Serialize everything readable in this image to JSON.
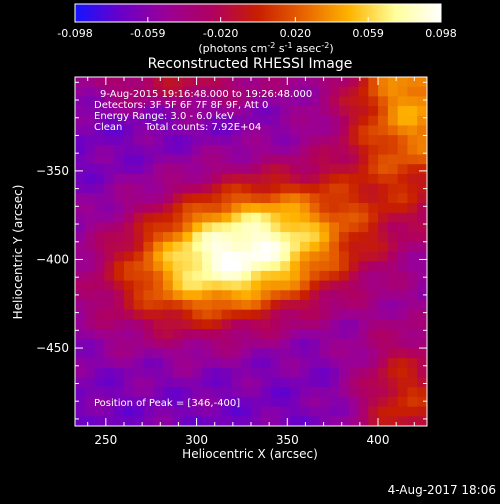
{
  "chart_data": {
    "type": "heatmap",
    "title": "Reconstructed RHESSI Image",
    "xlabel": "Heliocentric X (arcsec)",
    "ylabel": "Heliocentric Y (arcsec)",
    "xlim": [
      233,
      427
    ],
    "ylim": [
      -494,
      -297
    ],
    "x_ticks": [
      250,
      300,
      350,
      400
    ],
    "y_ticks": [
      -350,
      -400,
      -450
    ],
    "colorbar": {
      "ticks": [
        "-0.098",
        "-0.059",
        "-0.020",
        "0.020",
        "0.059",
        "0.098"
      ],
      "range": [
        -0.098,
        0.098
      ],
      "units_label": "(photons cm",
      "units_exp1": "-2",
      "units_mid": " s",
      "units_exp2": "-1",
      "units_mid2": " asec",
      "units_exp3": "-2",
      "units_end": ")",
      "colors": [
        "#1414ff",
        "#6a00c8",
        "#9a0096",
        "#b00060",
        "#c81e00",
        "#e86400",
        "#ffb400",
        "#ffff9a",
        "#ffffff"
      ]
    },
    "annotations": {
      "time_range": "9-Aug-2015 19:16:48.000 to 19:26:48.000",
      "detectors": "Detectors: 3F 5F 6F 7F 8F 9F, Att 0",
      "energy_range": "Energy Range: 3.0 - 6.0 keV",
      "clean_label": "Clean",
      "total_counts": "Total counts: 7.92E+04",
      "peak_position": "Position of Peak = [346,-400]"
    },
    "peak": [
      346,
      -400
    ]
  },
  "footer": {
    "date_stamp": "4-Aug-2017 18:06"
  }
}
